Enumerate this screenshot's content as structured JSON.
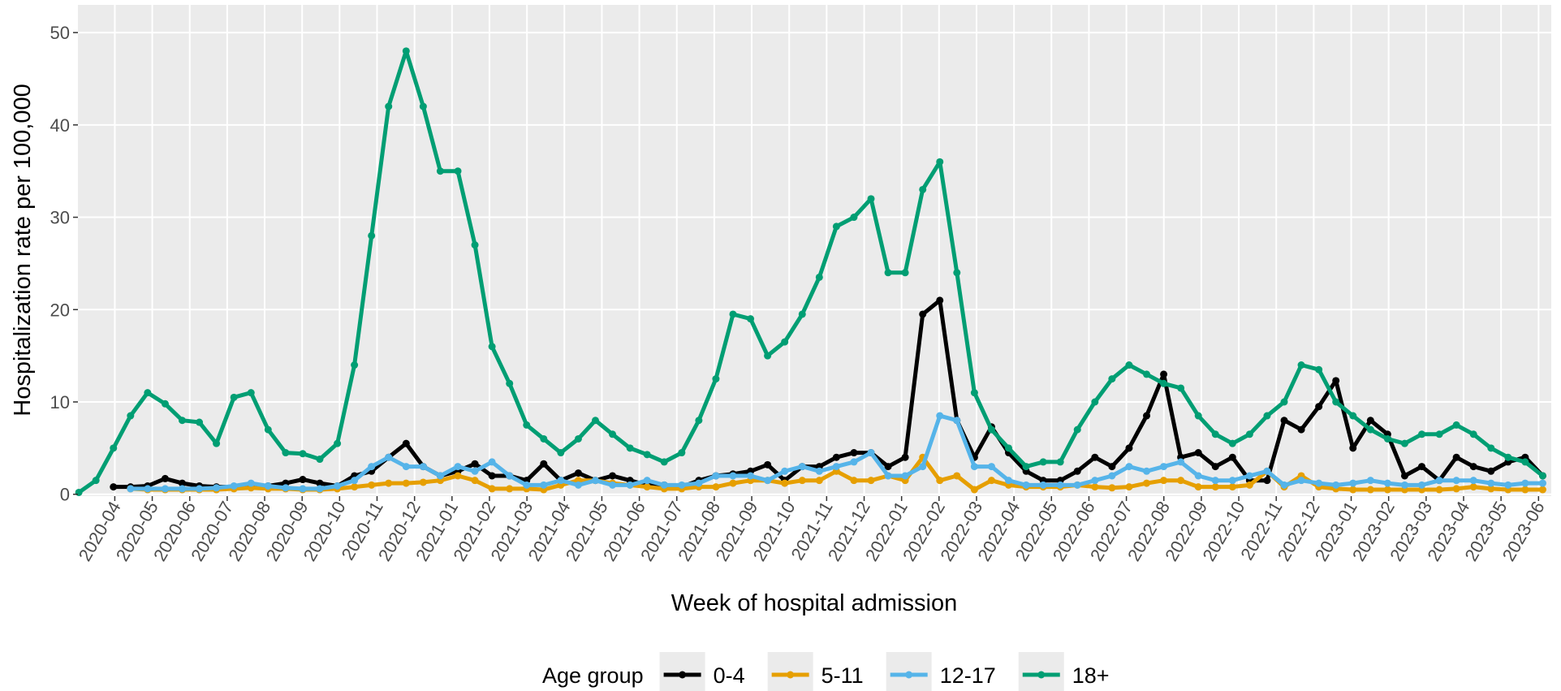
{
  "chart_data": {
    "type": "line",
    "xlabel": "Week of hospital admission",
    "ylabel": "Hospitalization rate per 100,000",
    "legend_title": "Age group",
    "legend": "bottom",
    "grid": true,
    "xlim": [
      2020.168,
      2023.445
    ],
    "ylim": [
      -0.2,
      53
    ],
    "yticks": [
      0,
      10,
      20,
      30,
      40,
      50
    ],
    "xticks": [
      {
        "value": 2020.25,
        "label": "2020-04"
      },
      {
        "value": 2020.3333,
        "label": "2020-05"
      },
      {
        "value": 2020.4167,
        "label": "2020-06"
      },
      {
        "value": 2020.5,
        "label": "2020-07"
      },
      {
        "value": 2020.5833,
        "label": "2020-08"
      },
      {
        "value": 2020.6667,
        "label": "2020-09"
      },
      {
        "value": 2020.75,
        "label": "2020-10"
      },
      {
        "value": 2020.8333,
        "label": "2020-11"
      },
      {
        "value": 2020.9167,
        "label": "2020-12"
      },
      {
        "value": 2021.0,
        "label": "2021-01"
      },
      {
        "value": 2021.0833,
        "label": "2021-02"
      },
      {
        "value": 2021.1667,
        "label": "2021-03"
      },
      {
        "value": 2021.25,
        "label": "2021-04"
      },
      {
        "value": 2021.3333,
        "label": "2021-05"
      },
      {
        "value": 2021.4167,
        "label": "2021-06"
      },
      {
        "value": 2021.5,
        "label": "2021-07"
      },
      {
        "value": 2021.5833,
        "label": "2021-08"
      },
      {
        "value": 2021.6667,
        "label": "2021-09"
      },
      {
        "value": 2021.75,
        "label": "2021-10"
      },
      {
        "value": 2021.8333,
        "label": "2021-11"
      },
      {
        "value": 2021.9167,
        "label": "2021-12"
      },
      {
        "value": 2022.0,
        "label": "2022-01"
      },
      {
        "value": 2022.0833,
        "label": "2022-02"
      },
      {
        "value": 2022.1667,
        "label": "2022-03"
      },
      {
        "value": 2022.25,
        "label": "2022-04"
      },
      {
        "value": 2022.3333,
        "label": "2022-05"
      },
      {
        "value": 2022.4167,
        "label": "2022-06"
      },
      {
        "value": 2022.5,
        "label": "2022-07"
      },
      {
        "value": 2022.5833,
        "label": "2022-08"
      },
      {
        "value": 2022.6667,
        "label": "2022-09"
      },
      {
        "value": 2022.75,
        "label": "2022-10"
      },
      {
        "value": 2022.8333,
        "label": "2022-11"
      },
      {
        "value": 2022.9167,
        "label": "2022-12"
      },
      {
        "value": 2023.0,
        "label": "2023-01"
      },
      {
        "value": 2023.0833,
        "label": "2023-02"
      },
      {
        "value": 2023.1667,
        "label": "2023-03"
      },
      {
        "value": 2023.25,
        "label": "2023-04"
      },
      {
        "value": 2023.3333,
        "label": "2023-05"
      },
      {
        "value": 2023.4167,
        "label": "2023-06"
      }
    ],
    "x": [
      2020.17,
      2020.208,
      2020.247,
      2020.285,
      2020.323,
      2020.362,
      2020.4,
      2020.438,
      2020.476,
      2020.515,
      2020.553,
      2020.591,
      2020.63,
      2020.668,
      2020.706,
      2020.745,
      2020.783,
      2020.821,
      2020.859,
      2020.898,
      2020.936,
      2020.974,
      2021.013,
      2021.051,
      2021.089,
      2021.128,
      2021.166,
      2021.204,
      2021.242,
      2021.281,
      2021.319,
      2021.357,
      2021.396,
      2021.434,
      2021.472,
      2021.511,
      2021.549,
      2021.587,
      2021.625,
      2021.664,
      2021.702,
      2021.74,
      2021.779,
      2021.817,
      2021.855,
      2021.894,
      2021.932,
      2021.97,
      2022.008,
      2022.047,
      2022.085,
      2022.123,
      2022.162,
      2022.2,
      2022.238,
      2022.277,
      2022.315,
      2022.353,
      2022.391,
      2022.43,
      2022.468,
      2022.506,
      2022.545,
      2022.583,
      2022.621,
      2022.66,
      2022.698,
      2022.736,
      2022.774,
      2022.813,
      2022.851,
      2022.889,
      2022.928,
      2022.966,
      2023.004,
      2023.043,
      2023.081,
      2023.119,
      2023.157,
      2023.196,
      2023.234,
      2023.272,
      2023.311,
      2023.349,
      2023.387,
      2023.426
    ],
    "series": [
      {
        "name": "0-4",
        "color": "#000000",
        "values": [
          null,
          null,
          0.8,
          0.8,
          0.9,
          1.7,
          1.2,
          0.9,
          0.8,
          0.8,
          0.8,
          0.9,
          1.2,
          1.6,
          1.2,
          0.9,
          2,
          2.5,
          4,
          5.5,
          3,
          2,
          2.5,
          3.3,
          2,
          2,
          1.5,
          3.3,
          1.5,
          2.3,
          1.5,
          2,
          1.5,
          1,
          1,
          0.8,
          1.5,
          2,
          2.2,
          2.5,
          3.2,
          1.5,
          3,
          3,
          4,
          4.5,
          4.5,
          3,
          4,
          19.5,
          21,
          8,
          4,
          7.3,
          4.5,
          2.5,
          1.5,
          1.5,
          2.5,
          4,
          3,
          5,
          8.5,
          13,
          4,
          4.5,
          3,
          4,
          1.5,
          1.5,
          8,
          7,
          9.5,
          12.3,
          5,
          8,
          6.5,
          2,
          3,
          1.5,
          4,
          3,
          2.5,
          3.5,
          4,
          2
        ]
      },
      {
        "name": "5-11",
        "color": "#E69F00",
        "values": [
          null,
          null,
          null,
          0.6,
          0.5,
          0.5,
          0.5,
          0.5,
          0.5,
          0.6,
          0.7,
          0.6,
          0.6,
          0.5,
          0.5,
          0.6,
          0.8,
          1,
          1.2,
          1.2,
          1.3,
          1.5,
          2,
          1.5,
          0.6,
          0.6,
          0.6,
          0.5,
          1,
          1.5,
          1.5,
          1.2,
          1,
          0.8,
          0.6,
          0.6,
          0.8,
          0.8,
          1.2,
          1.5,
          1.5,
          1.2,
          1.5,
          1.5,
          2.5,
          1.5,
          1.5,
          2,
          1.5,
          4,
          1.5,
          2,
          0.5,
          1.5,
          1,
          0.8,
          0.8,
          0.8,
          1,
          0.8,
          0.7,
          0.8,
          1.2,
          1.5,
          1.5,
          0.8,
          0.8,
          0.8,
          1,
          2.5,
          0.8,
          2,
          0.8,
          0.6,
          0.5,
          0.5,
          0.5,
          0.5,
          0.5,
          0.5,
          0.6,
          0.8,
          0.6,
          0.5,
          0.5,
          0.5
        ]
      },
      {
        "name": "12-17",
        "color": "#56B4E9",
        "values": [
          null,
          null,
          null,
          0.6,
          0.6,
          0.6,
          0.6,
          0.6,
          0.7,
          0.9,
          1.2,
          0.9,
          0.7,
          0.6,
          0.6,
          0.9,
          1.5,
          3,
          4,
          3,
          3,
          2,
          3,
          2.5,
          3.5,
          2,
          1,
          1,
          1.5,
          1,
          1.5,
          1,
          1,
          1.5,
          1,
          1,
          1.2,
          2,
          2,
          2,
          1.5,
          2.5,
          3,
          2.5,
          3,
          3.5,
          4.5,
          2,
          2,
          3,
          8.5,
          8,
          3,
          3,
          1.5,
          1,
          1,
          1,
          1,
          1.5,
          2,
          3,
          2.5,
          3,
          3.5,
          2,
          1.5,
          1.5,
          2,
          2.5,
          1,
          1.5,
          1.2,
          1,
          1.2,
          1.5,
          1.2,
          1,
          1,
          1.5,
          1.5,
          1.5,
          1.2,
          1,
          1.2,
          1.2
        ]
      },
      {
        "name": "18+",
        "color": "#009E73",
        "values": [
          0.2,
          1.5,
          5,
          8.5,
          11,
          9.8,
          8,
          7.8,
          5.5,
          10.5,
          11,
          7,
          4.5,
          4.4,
          3.8,
          5.5,
          14,
          28,
          42,
          48,
          42,
          35,
          35,
          27,
          16,
          12,
          7.5,
          6,
          4.5,
          6,
          8,
          6.5,
          5,
          4.3,
          3.5,
          4.5,
          8,
          12.5,
          19.5,
          19,
          15,
          16.5,
          19.5,
          23.5,
          29,
          30,
          32,
          24,
          24,
          33,
          36,
          24,
          11,
          7,
          5,
          3,
          3.5,
          3.5,
          7,
          10,
          12.5,
          14,
          13,
          12,
          11.5,
          8.5,
          6.5,
          5.5,
          6.5,
          8.5,
          10,
          14,
          13.5,
          10,
          8.5,
          7,
          6,
          5.5,
          6.5,
          6.5,
          7.5,
          6.5,
          5,
          4,
          3.5,
          2
        ]
      }
    ]
  }
}
